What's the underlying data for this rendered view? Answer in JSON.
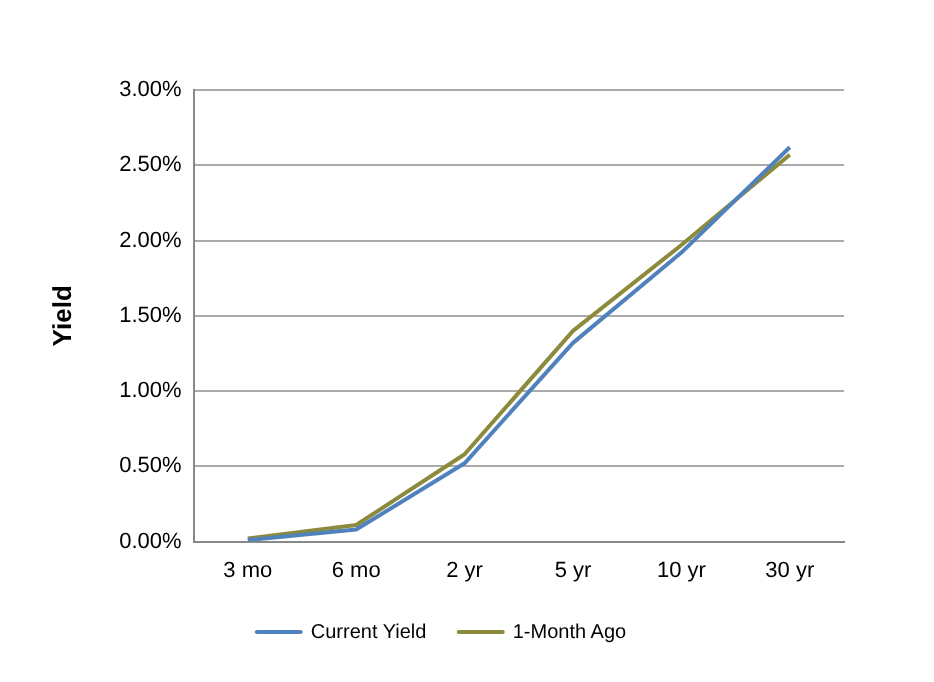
{
  "chart_data": {
    "type": "line",
    "ylabel": "Yield",
    "categories": [
      "3 mo",
      "6 mo",
      "2 yr",
      "5 yr",
      "10 yr",
      "30 yr"
    ],
    "series": [
      {
        "name": "Current Yield",
        "color": "#4f81bd",
        "values": [
          0.01,
          0.08,
          0.52,
          1.32,
          1.92,
          2.62
        ]
      },
      {
        "name": "1-Month Ago",
        "color": "#8c8a3c",
        "values": [
          0.02,
          0.11,
          0.58,
          1.4,
          1.97,
          2.57
        ]
      }
    ],
    "ylim": [
      0,
      3
    ],
    "yticks": [
      {
        "value": 0,
        "label": "0.00%"
      },
      {
        "value": 0.5,
        "label": "0.50%"
      },
      {
        "value": 1,
        "label": "1.00%"
      },
      {
        "value": 1.5,
        "label": "1.50%"
      },
      {
        "value": 2,
        "label": "2.00%"
      },
      {
        "value": 2.5,
        "label": "2.50%"
      },
      {
        "value": 3,
        "label": "3.00%"
      }
    ],
    "grid": "y",
    "legend": "bottom",
    "marker": "none",
    "line_style": "solid"
  }
}
